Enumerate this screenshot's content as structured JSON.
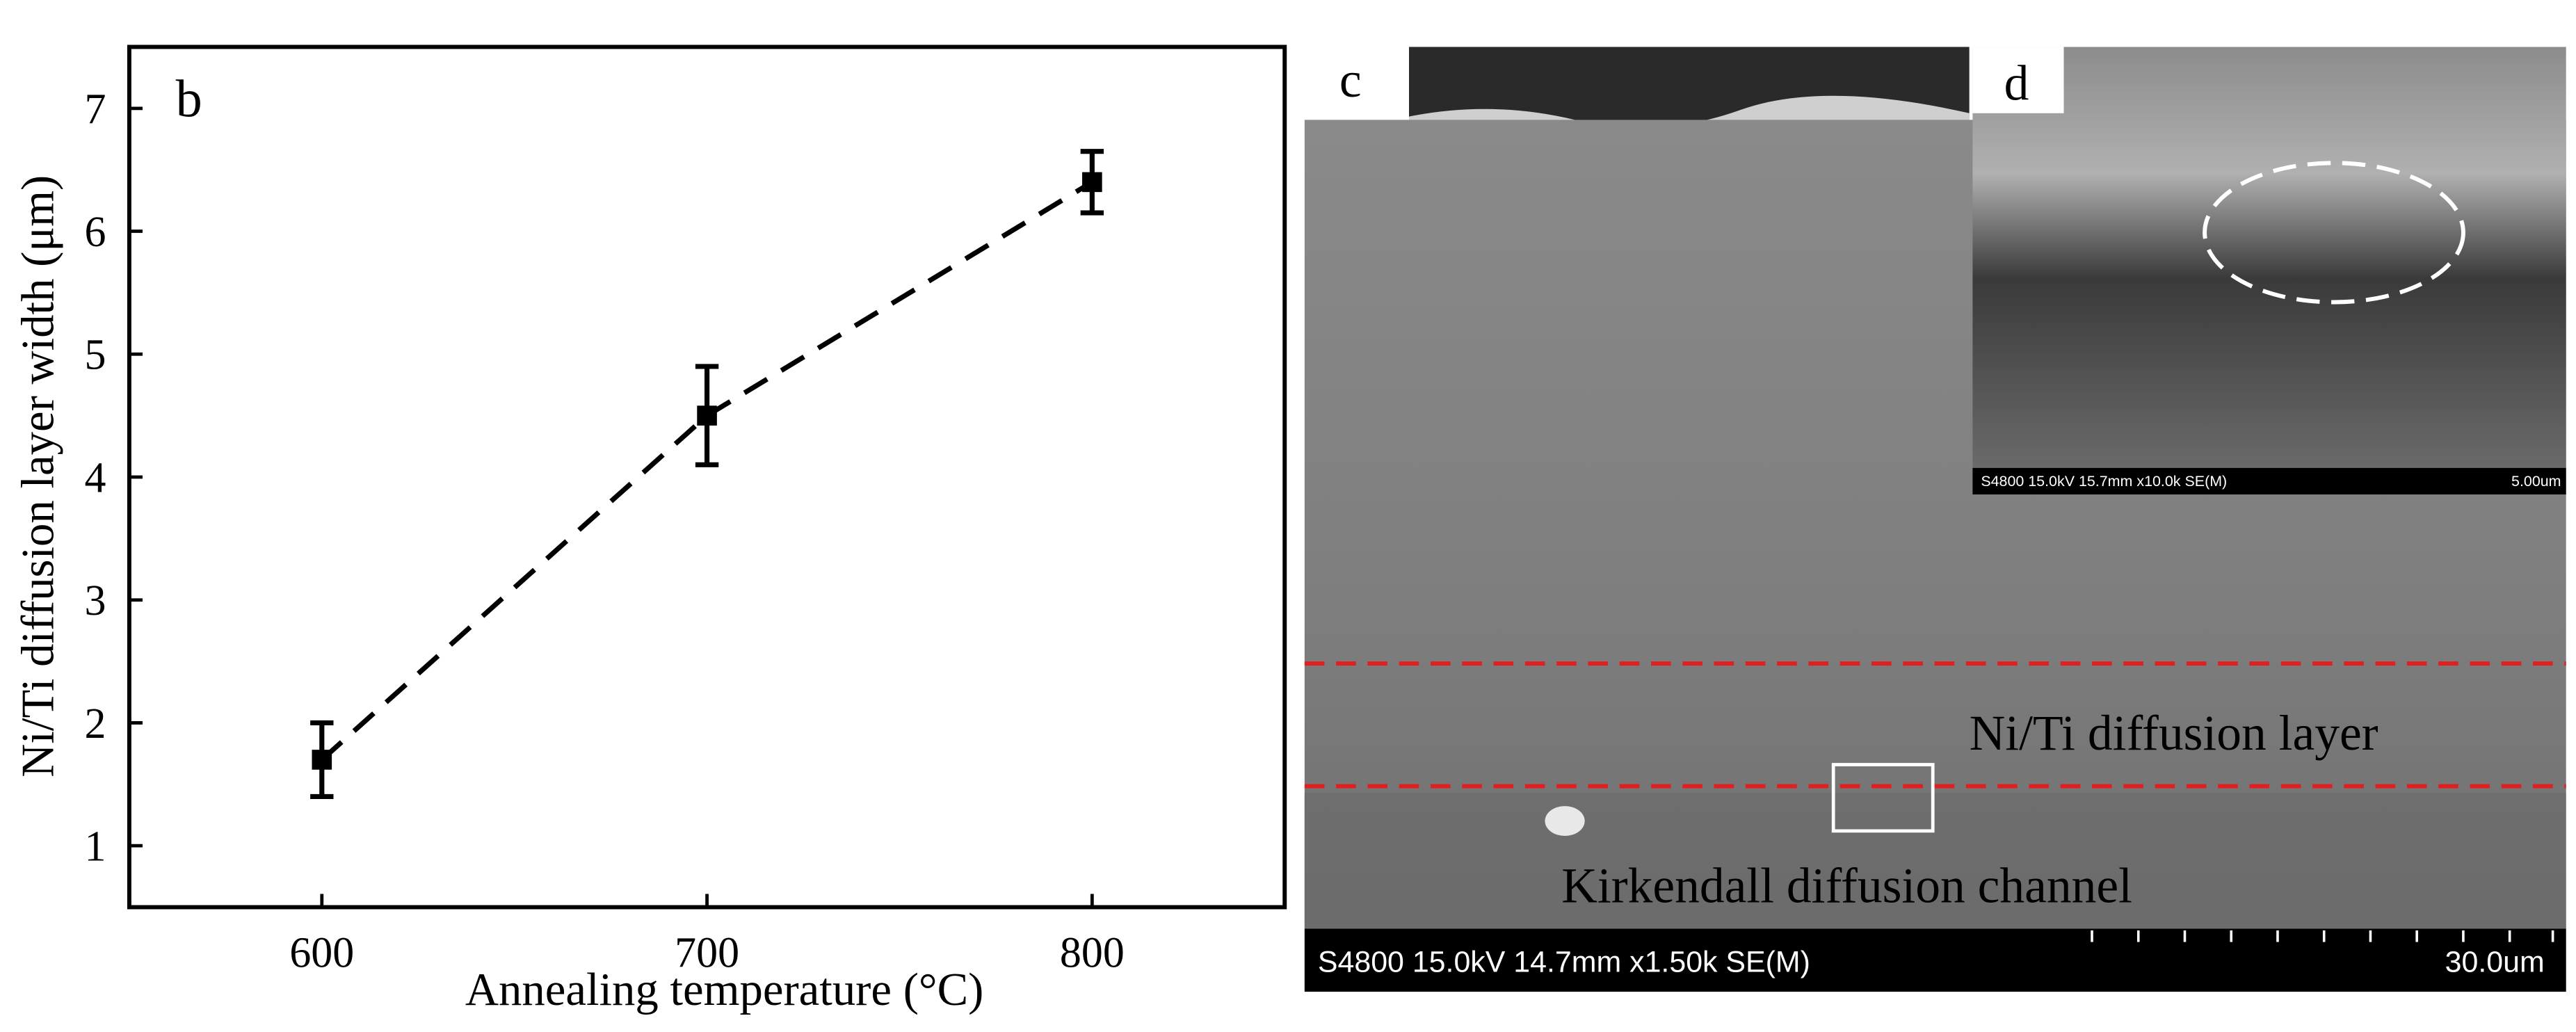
{
  "chart_data": {
    "type": "line",
    "label": "b",
    "x_label": "Annealing temperature (°C)",
    "y_label": "Ni/Ti diffusion layer width (μm)",
    "x": [
      600,
      700,
      800
    ],
    "values": [
      1.7,
      4.5,
      6.4
    ],
    "errors": [
      0.3,
      0.4,
      0.25
    ],
    "color": "#000000",
    "line_style": "dashed",
    "xlim": [
      550,
      850
    ],
    "xticks": [
      600,
      700,
      800
    ],
    "ylim": [
      0.5,
      7.5
    ],
    "yticks": [
      1,
      2,
      3,
      4,
      5,
      6,
      7
    ]
  },
  "panels": {
    "c": {
      "label": "c",
      "layer_text": "Ni/Ti diffusion layer",
      "channel_text": "Kirkendall diffusion channel",
      "info": "S4800 15.0kV 14.7mm x1.50k SE(M)",
      "scale": "30.0um"
    },
    "d": {
      "label": "d",
      "info": "S4800 15.0kV 15.7mm x10.0k SE(M)",
      "scale": "5.00um"
    }
  }
}
